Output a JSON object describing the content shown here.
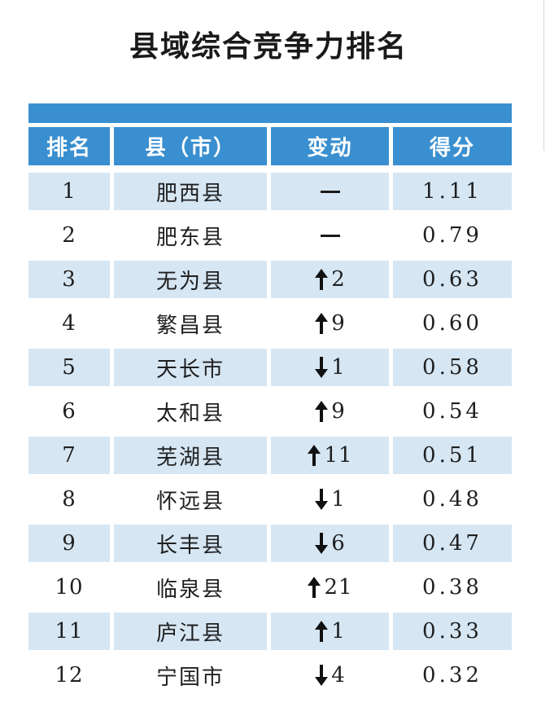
{
  "title": "县域综合竞争力排名",
  "columns": [
    "排名",
    "县（市）",
    "变动",
    "得分"
  ],
  "rows": [
    {
      "rank": "1",
      "name": "肥西县",
      "dir": "none",
      "change": "",
      "score": "1.11"
    },
    {
      "rank": "2",
      "name": "肥东县",
      "dir": "none",
      "change": "",
      "score": "0.79"
    },
    {
      "rank": "3",
      "name": "无为县",
      "dir": "up",
      "change": "2",
      "score": "0.63"
    },
    {
      "rank": "4",
      "name": "繁昌县",
      "dir": "up",
      "change": "9",
      "score": "0.60"
    },
    {
      "rank": "5",
      "name": "天长市",
      "dir": "down",
      "change": "1",
      "score": "0.58"
    },
    {
      "rank": "6",
      "name": "太和县",
      "dir": "up",
      "change": "9",
      "score": "0.54"
    },
    {
      "rank": "7",
      "name": "芜湖县",
      "dir": "up",
      "change": "11",
      "score": "0.51"
    },
    {
      "rank": "8",
      "name": "怀远县",
      "dir": "down",
      "change": "1",
      "score": "0.48"
    },
    {
      "rank": "9",
      "name": "长丰县",
      "dir": "down",
      "change": "6",
      "score": "0.47"
    },
    {
      "rank": "10",
      "name": "临泉县",
      "dir": "up",
      "change": "21",
      "score": "0.38"
    },
    {
      "rank": "11",
      "name": "庐江县",
      "dir": "up",
      "change": "1",
      "score": "0.33"
    },
    {
      "rank": "12",
      "name": "宁国市",
      "dir": "down",
      "change": "4",
      "score": "0.32"
    }
  ],
  "colors": {
    "header_blue": "#3a8fd0",
    "row_shade": "#d6e6f3"
  }
}
